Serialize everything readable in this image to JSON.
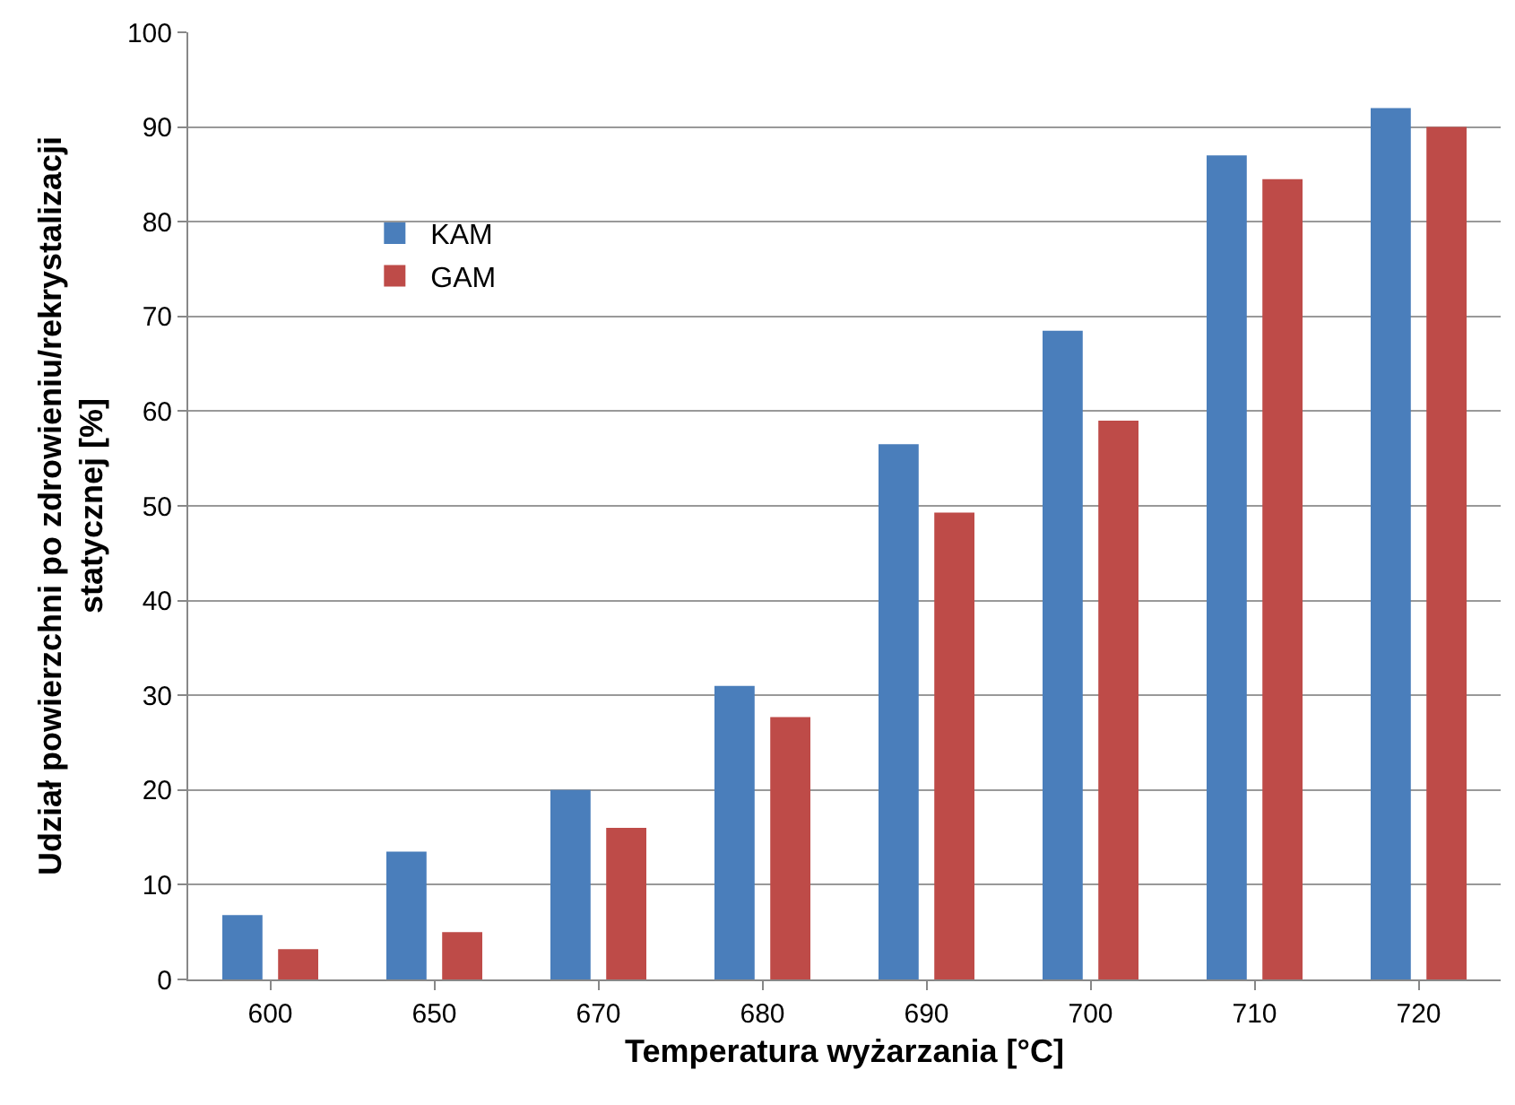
{
  "chart_data": {
    "type": "bar",
    "xlabel": "Temperatura wyżarzania [°C]",
    "ylabel": "Udział powierzchni po zdrowieniu/rekrystalizacji\nstatycznej [%]",
    "categories": [
      "600",
      "650",
      "670",
      "680",
      "690",
      "700",
      "710",
      "720"
    ],
    "series": [
      {
        "name": "KAM",
        "color": "#4a7ebb",
        "values": [
          6.8,
          13.5,
          20,
          31,
          56.5,
          68.5,
          87,
          92
        ]
      },
      {
        "name": "GAM",
        "color": "#be4b48",
        "values": [
          3.2,
          5,
          16,
          27.7,
          49.3,
          59,
          84.5,
          90
        ]
      }
    ],
    "ylim": [
      0,
      100
    ],
    "yticks": [
      0,
      10,
      20,
      30,
      40,
      50,
      60,
      70,
      80,
      90,
      100
    ],
    "grid": "y",
    "legend": "top left"
  }
}
